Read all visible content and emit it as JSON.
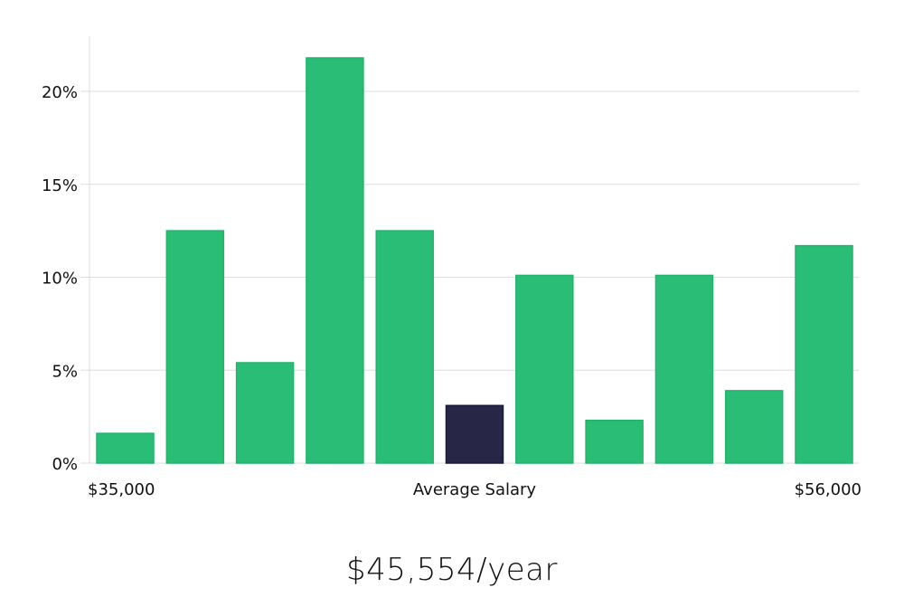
{
  "chart_data": {
    "type": "bar",
    "categories": [
      "",
      "",
      "",
      "",
      "",
      "",
      "",
      "",
      "",
      "",
      ""
    ],
    "values": [
      1.6,
      12.5,
      5.4,
      21.8,
      12.5,
      3.1,
      10.1,
      2.3,
      10.1,
      3.9,
      11.7
    ],
    "highlight_index": 5,
    "ylim": [
      0,
      23
    ],
    "yticks": [
      0,
      5,
      10,
      15,
      20
    ],
    "ytick_format": "%",
    "x_labels": {
      "left": "$35,000",
      "center": "Average Salary",
      "right": "$56,000"
    },
    "grid": true,
    "colors": {
      "bar": "#2abd76",
      "highlight": "#282647",
      "grid": "#dddddd"
    }
  },
  "summary": {
    "salary": "$45,554/year"
  }
}
